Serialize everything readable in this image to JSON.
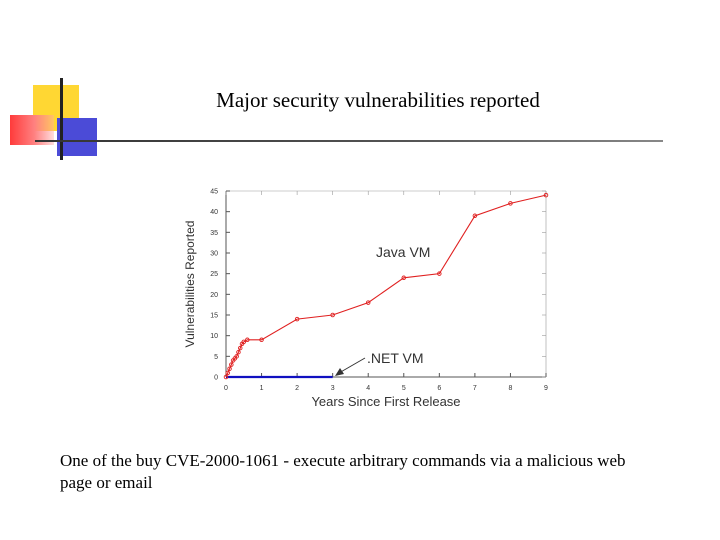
{
  "slide": {
    "title": "Major security vulnerabilities reported",
    "caption": "One of the buy CVE-2000-1061 - execute arbitrary commands via a malicious web page or email"
  },
  "colors": {
    "accent_yellow": "#ffd733",
    "accent_blue": "#4b4bd7",
    "accent_red": "#ff3b3b",
    "java_series": "#e02020",
    "net_series": "#1010c0"
  },
  "chart_data": {
    "type": "line",
    "xlabel": "Years Since First Release",
    "ylabel": "Vulnerabilities Reported",
    "xlim": [
      0,
      9
    ],
    "ylim": [
      0,
      45
    ],
    "xticks": [
      0,
      1,
      2,
      3,
      4,
      5,
      6,
      7,
      8,
      9
    ],
    "yticks": [
      0,
      5,
      10,
      15,
      20,
      25,
      30,
      35,
      40,
      45
    ],
    "grid": false,
    "series": [
      {
        "name": "Java VM",
        "points": [
          [
            0,
            0
          ],
          [
            0.05,
            1
          ],
          [
            0.1,
            2
          ],
          [
            0.15,
            3
          ],
          [
            0.2,
            4
          ],
          [
            0.25,
            4.5
          ],
          [
            0.3,
            5
          ],
          [
            0.35,
            6
          ],
          [
            0.4,
            7
          ],
          [
            0.45,
            8
          ],
          [
            0.5,
            8.5
          ],
          [
            0.6,
            9
          ],
          [
            1,
            9
          ],
          [
            2,
            14
          ],
          [
            3,
            15
          ],
          [
            4,
            18
          ],
          [
            5,
            24
          ],
          [
            6,
            25
          ],
          [
            7,
            39
          ],
          [
            8,
            42
          ],
          [
            9,
            44
          ]
        ]
      },
      {
        "name": ".NET VM",
        "points": [
          [
            0,
            0
          ],
          [
            3,
            0
          ]
        ]
      }
    ]
  }
}
